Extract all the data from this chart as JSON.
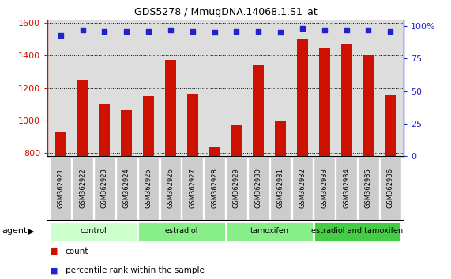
{
  "title": "GDS5278 / MmugDNA.14068.1.S1_at",
  "samples": [
    "GSM362921",
    "GSM362922",
    "GSM362923",
    "GSM362924",
    "GSM362925",
    "GSM362926",
    "GSM362927",
    "GSM362928",
    "GSM362929",
    "GSM362930",
    "GSM362931",
    "GSM362932",
    "GSM362933",
    "GSM362934",
    "GSM362935",
    "GSM362936"
  ],
  "counts": [
    930,
    1250,
    1100,
    1060,
    1150,
    1370,
    1165,
    835,
    970,
    1340,
    1000,
    1500,
    1445,
    1470,
    1400,
    1160
  ],
  "percentile": [
    93,
    97,
    96,
    96,
    96,
    97,
    96,
    95,
    96,
    96,
    95,
    98,
    97,
    97,
    97,
    96
  ],
  "ylim_left": [
    780,
    1620
  ],
  "ylim_right": [
    0,
    105
  ],
  "yticks_left": [
    800,
    1000,
    1200,
    1400,
    1600
  ],
  "yticks_right": [
    0,
    25,
    50,
    75,
    100
  ],
  "groups": [
    {
      "label": "control",
      "start": 0,
      "end": 4,
      "color": "#ccffcc"
    },
    {
      "label": "estradiol",
      "start": 4,
      "end": 8,
      "color": "#88ee88"
    },
    {
      "label": "tamoxifen",
      "start": 8,
      "end": 12,
      "color": "#88ee88"
    },
    {
      "label": "estradiol and tamoxifen",
      "start": 12,
      "end": 16,
      "color": "#44cc44"
    }
  ],
  "bar_color": "#cc1100",
  "dot_color": "#2222cc",
  "left_axis_color": "#cc1100",
  "right_axis_color": "#2222cc",
  "plot_bg_color": "#dddddd",
  "sample_label_bg": "#cccccc",
  "group_row_bg": "#ffffff",
  "bar_width": 0.5,
  "legend_items": [
    {
      "label": "count",
      "color": "#cc1100"
    },
    {
      "label": "percentile rank within the sample",
      "color": "#2222cc"
    }
  ]
}
